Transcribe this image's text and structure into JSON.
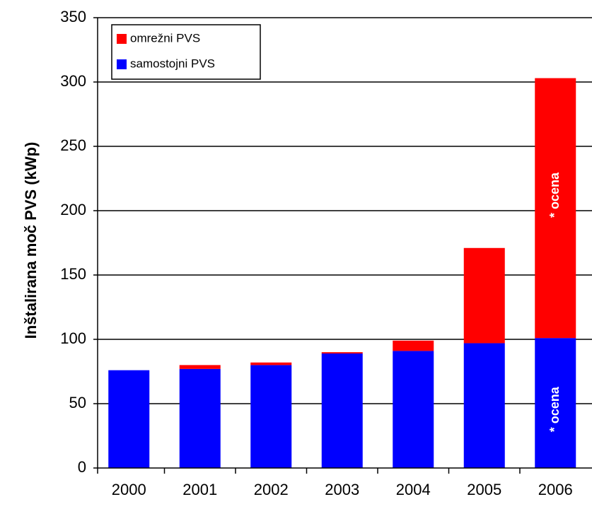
{
  "chart_data": {
    "type": "bar",
    "stacked": true,
    "y_label": "Inštalirana moč PVS (kWp)",
    "categories": [
      "2000",
      "2001",
      "2002",
      "2003",
      "2004",
      "2005",
      "2006"
    ],
    "series": [
      {
        "name": "samostojni PVS",
        "color": "#0000ff",
        "values": [
          76,
          77,
          80,
          89,
          91,
          97,
          101
        ]
      },
      {
        "name": "omrežni PVS",
        "color": "#ff0000",
        "values": [
          0,
          3,
          2,
          1,
          8,
          74,
          202
        ]
      }
    ],
    "annotations": [
      "* ocena",
      "* ocena"
    ],
    "ylim": [
      0,
      350
    ],
    "yticks": [
      0,
      50,
      100,
      150,
      200,
      250,
      300,
      350
    ],
    "grid": true,
    "legend": "upper left"
  }
}
